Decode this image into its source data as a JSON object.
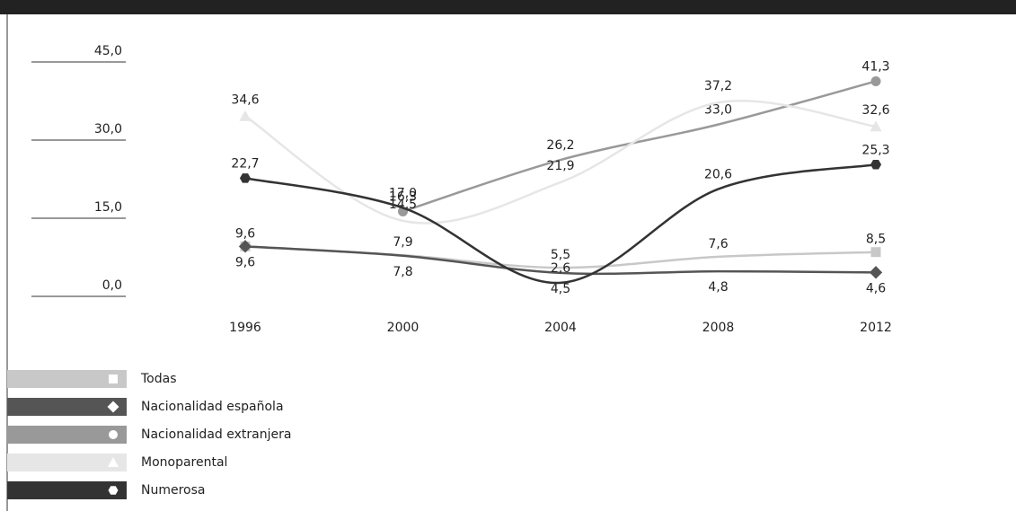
{
  "chart_data": {
    "type": "line",
    "categories": [
      "1996",
      "2000",
      "2004",
      "2008",
      "2012"
    ],
    "ylim": [
      0,
      45
    ],
    "yticks": [
      {
        "value": 0,
        "label": "0,0"
      },
      {
        "value": 15,
        "label": "15,0"
      },
      {
        "value": 30,
        "label": "30,0"
      },
      {
        "value": 45,
        "label": "45,0"
      }
    ],
    "series": [
      {
        "name": "Todas",
        "color": "#c8c8c8",
        "marker": "square",
        "values": [
          9.6,
          7.9,
          5.5,
          7.6,
          8.5
        ],
        "value_labels": [
          "9,6",
          "7,9",
          "5,5",
          "7,6",
          "8,5"
        ]
      },
      {
        "name": "Nacionalidad española",
        "color": "#555555",
        "marker": "diamond",
        "values": [
          9.6,
          7.8,
          4.5,
          4.8,
          4.6
        ],
        "value_labels": [
          "9,6",
          "7,8",
          "4,5",
          "4,8",
          "4,6"
        ]
      },
      {
        "name": "Nacionalidad extranjera",
        "color": "#999999",
        "marker": "circle",
        "values": [
          null,
          16.3,
          26.2,
          33.0,
          41.3
        ],
        "value_labels": [
          null,
          "16,3",
          "26,2",
          "33,0",
          "41,3"
        ]
      },
      {
        "name": "Monoparental",
        "color": "#e6e6e6",
        "marker": "triangle",
        "values": [
          34.6,
          14.5,
          21.9,
          37.2,
          32.6
        ],
        "value_labels": [
          "34,6",
          "14,5",
          "21,9",
          "37,2",
          "32,6"
        ]
      },
      {
        "name": "Numerosa",
        "color": "#333333",
        "marker": "hexagon",
        "values": [
          22.7,
          17.0,
          2.6,
          20.6,
          25.3
        ],
        "value_labels": [
          "22,7",
          "17,0",
          "2,6",
          "20,6",
          "25,3"
        ]
      }
    ]
  }
}
